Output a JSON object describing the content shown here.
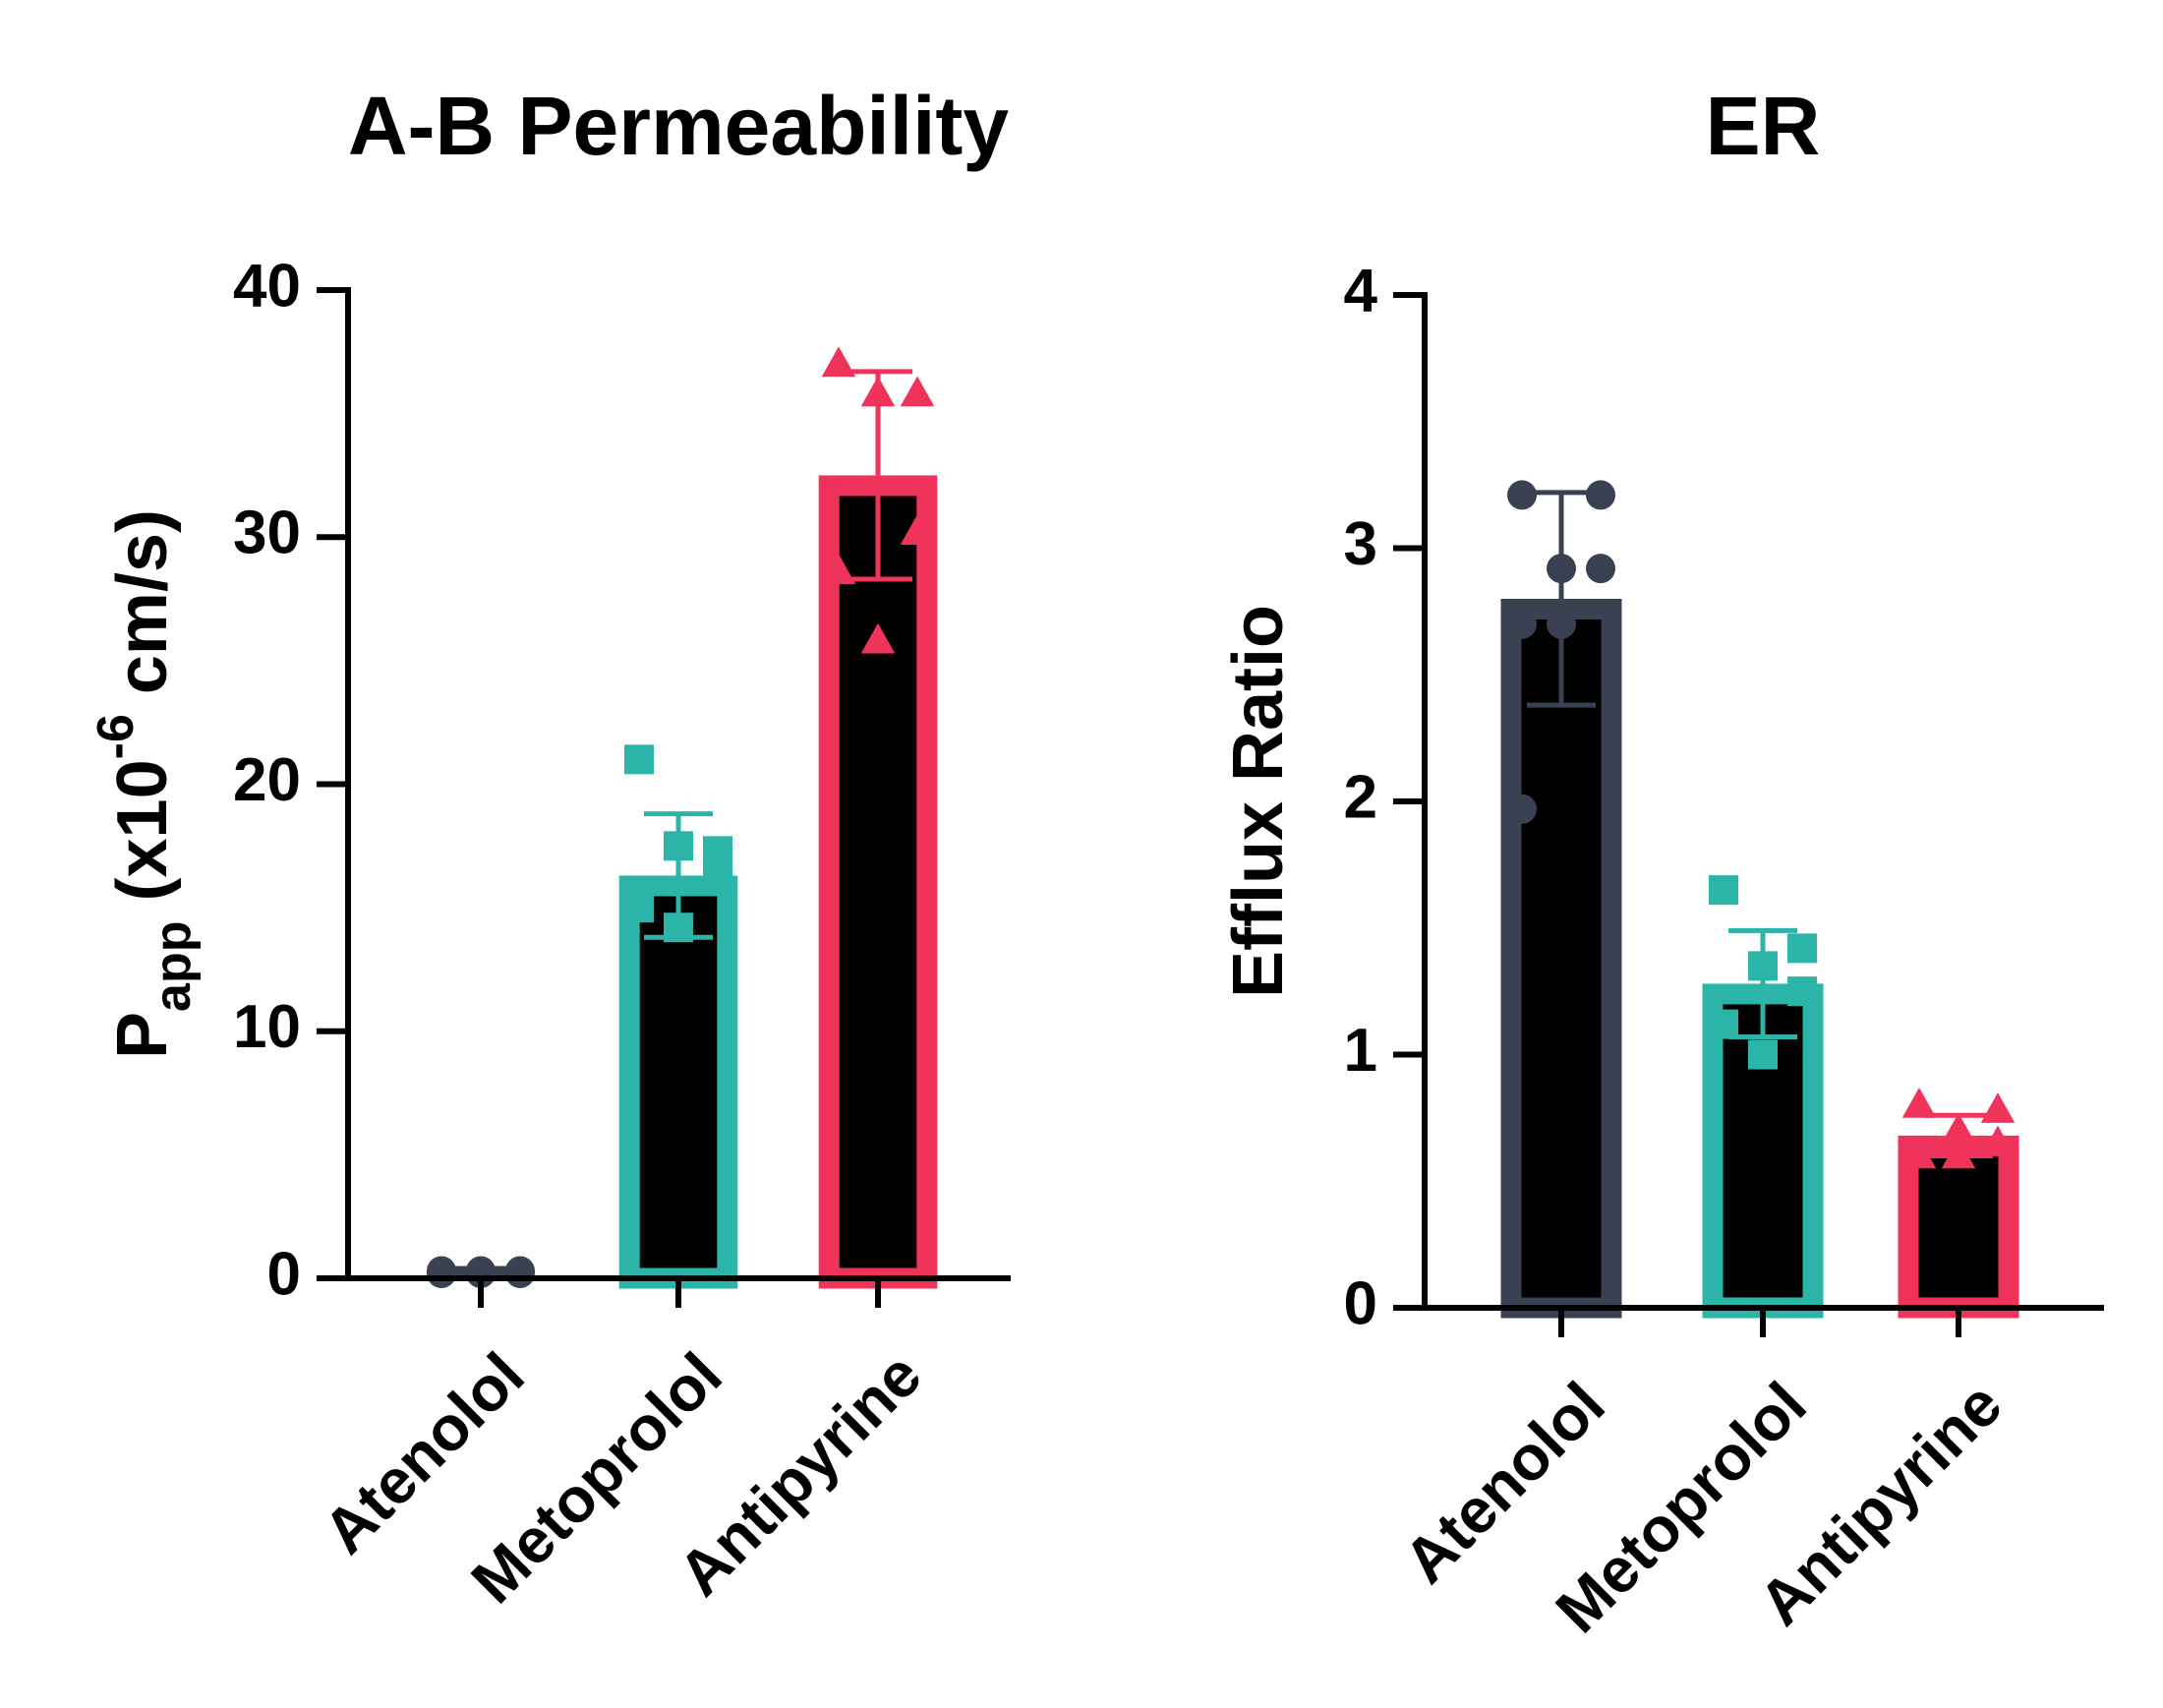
{
  "chart_data": [
    {
      "type": "bar",
      "title": "A-B Permeability",
      "y_label": [
        {
          "text": "P"
        },
        {
          "text": "app",
          "shift": "sub"
        },
        {
          "text": " (x10"
        },
        {
          "text": "-6",
          "shift": "super"
        },
        {
          "text": " cm/s)"
        }
      ],
      "categories": [
        "Atenolol",
        "Metoprolol",
        "Antipyrine"
      ],
      "values": [
        0.3,
        16.3,
        32.5
      ],
      "errors": [
        0.1,
        2.5,
        4.2
      ],
      "points": [
        [
          0.2,
          0.3,
          0.3,
          0.2,
          0.3,
          0.2
        ],
        [
          21.0,
          17.3,
          17.5,
          16.2,
          15.0,
          14.2
        ],
        [
          37.0,
          35.8,
          35.8,
          30.2,
          28.6,
          25.8
        ]
      ],
      "colors": [
        "#3a4152",
        "#2ab5a8",
        "#f0335a"
      ],
      "markers": [
        "circle",
        "square",
        "triangle"
      ],
      "ylim": [
        0,
        40
      ],
      "yticks": [
        0,
        10,
        20,
        30,
        40
      ]
    },
    {
      "type": "bar",
      "title": "ER",
      "y_label": [
        {
          "text": "Efflux Ratio"
        }
      ],
      "categories": [
        "Atenolol",
        "Metoprolol",
        "Antipyrine"
      ],
      "values": [
        2.8,
        1.28,
        0.68
      ],
      "errors": [
        0.42,
        0.21,
        0.08
      ],
      "points": [
        [
          3.21,
          3.21,
          2.92,
          2.92,
          2.7,
          2.7,
          1.97
        ],
        [
          1.65,
          1.42,
          1.35,
          1.25,
          1.12,
          1.0
        ],
        [
          0.8,
          0.78,
          0.7,
          0.65,
          0.6,
          0.6
        ]
      ],
      "colors": [
        "#3a4152",
        "#2ab5a8",
        "#f0335a"
      ],
      "markers": [
        "circle",
        "square",
        "triangle"
      ],
      "ylim": [
        0,
        4
      ],
      "yticks": [
        0,
        1,
        2,
        3,
        4
      ]
    }
  ]
}
